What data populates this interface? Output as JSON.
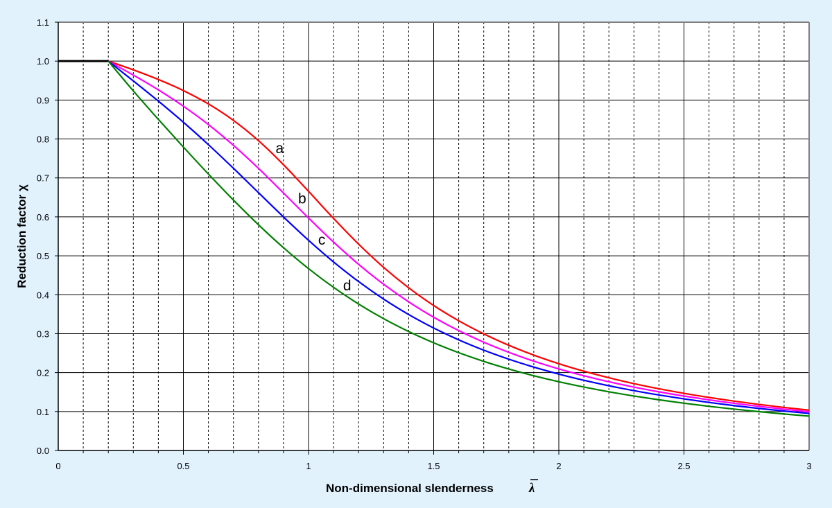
{
  "chart_data": {
    "type": "line",
    "xlabel": "Non-dimensional slenderness",
    "xlabel_symbol": "λ",
    "ylabel": "Reduction factor χ",
    "xlim": [
      0,
      3
    ],
    "ylim": [
      0,
      1.1
    ],
    "x_ticks": [
      "0",
      "0.5",
      "1",
      "1.5",
      "2",
      "2.5",
      "3"
    ],
    "y_ticks": [
      "0.0",
      "0.1",
      "0.2",
      "0.3",
      "0.4",
      "0.5",
      "0.6",
      "0.7",
      "0.8",
      "0.9",
      "1.0",
      "1.1"
    ],
    "grid": {
      "major_x": 0.5,
      "minor_x_dashed": 0.1,
      "major_y": 0.1
    },
    "plateau": {
      "x": [
        0,
        0.2
      ],
      "y": [
        1.0,
        1.0
      ],
      "color": "#000000"
    },
    "x": [
      0.2,
      0.3,
      0.4,
      0.5,
      0.6,
      0.7,
      0.8,
      0.9,
      1.0,
      1.1,
      1.2,
      1.3,
      1.4,
      1.5,
      1.6,
      1.7,
      1.8,
      1.9,
      2.0,
      2.1,
      2.2,
      2.3,
      2.4,
      2.5,
      2.6,
      2.7,
      2.8,
      2.9,
      3.0
    ],
    "series": [
      {
        "name": "a",
        "color": "#ff0000",
        "label_at": 0.86,
        "values": [
          1.0,
          0.9775,
          0.9528,
          0.9243,
          0.89,
          0.8477,
          0.7957,
          0.7339,
          0.6656,
          0.596,
          0.53,
          0.4703,
          0.4179,
          0.3724,
          0.3332,
          0.2994,
          0.2702,
          0.2449,
          0.2229,
          0.2036,
          0.1867,
          0.1717,
          0.1585,
          0.1467,
          0.1362,
          0.1267,
          0.1182,
          0.1105,
          0.1036
        ]
      },
      {
        "name": "b",
        "color": "#ff00ff",
        "label_at": 0.95,
        "values": [
          1.0,
          0.9641,
          0.9261,
          0.8842,
          0.8371,
          0.7837,
          0.7245,
          0.6612,
          0.597,
          0.5352,
          0.4781,
          0.4269,
          0.3817,
          0.3422,
          0.3079,
          0.2781,
          0.2521,
          0.2294,
          0.2095,
          0.192,
          0.1765,
          0.1628,
          0.1506,
          0.1397,
          0.1299,
          0.1211,
          0.1132,
          0.106,
          0.0994
        ]
      },
      {
        "name": "c",
        "color": "#0000ff",
        "label_at": 1.03,
        "values": [
          1.0,
          0.9491,
          0.8973,
          0.843,
          0.7854,
          0.7247,
          0.6622,
          0.5998,
          0.5399,
          0.4842,
          0.4338,
          0.3888,
          0.3492,
          0.3145,
          0.2842,
          0.2577,
          0.2345,
          0.2141,
          0.1962,
          0.1803,
          0.1662,
          0.1537,
          0.1425,
          0.1325,
          0.1234,
          0.1153,
          0.1079,
          0.1012,
          0.0951
        ]
      },
      {
        "name": "d",
        "color": "#008000",
        "label_at": 1.13,
        "values": [
          1.0,
          0.9235,
          0.8504,
          0.7793,
          0.71,
          0.6431,
          0.5797,
          0.5208,
          0.4671,
          0.4189,
          0.3762,
          0.3385,
          0.3055,
          0.2766,
          0.2512,
          0.2289,
          0.2093,
          0.192,
          0.1766,
          0.163,
          0.1508,
          0.1399,
          0.1302,
          0.1214,
          0.1134,
          0.1062,
          0.0997,
          0.0937,
          0.0882
        ]
      }
    ]
  }
}
